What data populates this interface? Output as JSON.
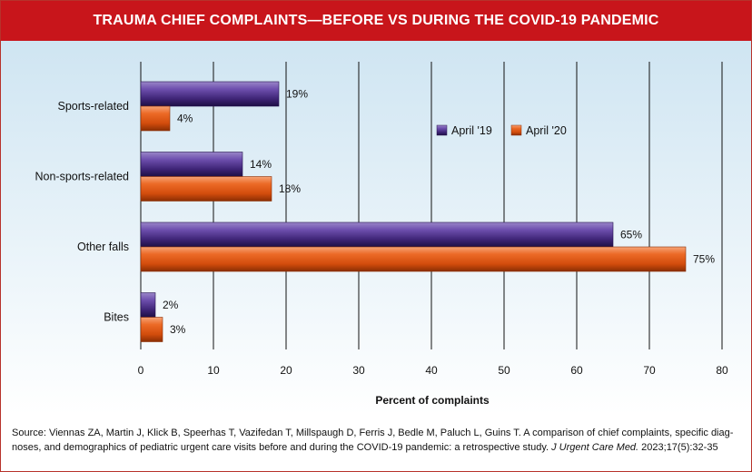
{
  "chart_data": {
    "type": "bar",
    "orientation": "horizontal",
    "title": "TRAUMA CHIEF COMPLAINTS—BEFORE VS DURING THE COVID-19 PANDEMIC",
    "categories": [
      "Sports-related",
      "Non-sports-related",
      "Other falls",
      "Bites"
    ],
    "series": [
      {
        "name": "April '19",
        "values": [
          19,
          14,
          65,
          2
        ],
        "labels": [
          "19%",
          "14%",
          "65%",
          "2%"
        ],
        "color": "#4b2d86"
      },
      {
        "name": "April '20",
        "values": [
          4,
          18,
          75,
          3
        ],
        "labels": [
          "4%",
          "18%",
          "75%",
          "3%"
        ],
        "color": "#e05a14"
      }
    ],
    "xlabel": "Percent of complaints",
    "ylabel": "",
    "xlim": [
      0,
      80
    ],
    "xticks": [
      0,
      10,
      20,
      30,
      40,
      50,
      60,
      70,
      80
    ],
    "grid": true,
    "legend": "top-right"
  },
  "source": {
    "text": "Source: Viennas ZA, Martin J, Klick B, Speerhas T, Vazifedan T, Millspaugh D, Ferris J, Bedle M, Paluch L, Guins T. A comparison of chief complaints, specific diag-noses, and demographics of pediatric urgent care visits before and during the COVID-19 pandemic: a retrospective study. ",
    "journal": "J Urgent Care Med.",
    "citation": " 2023;17(5):32-35"
  }
}
